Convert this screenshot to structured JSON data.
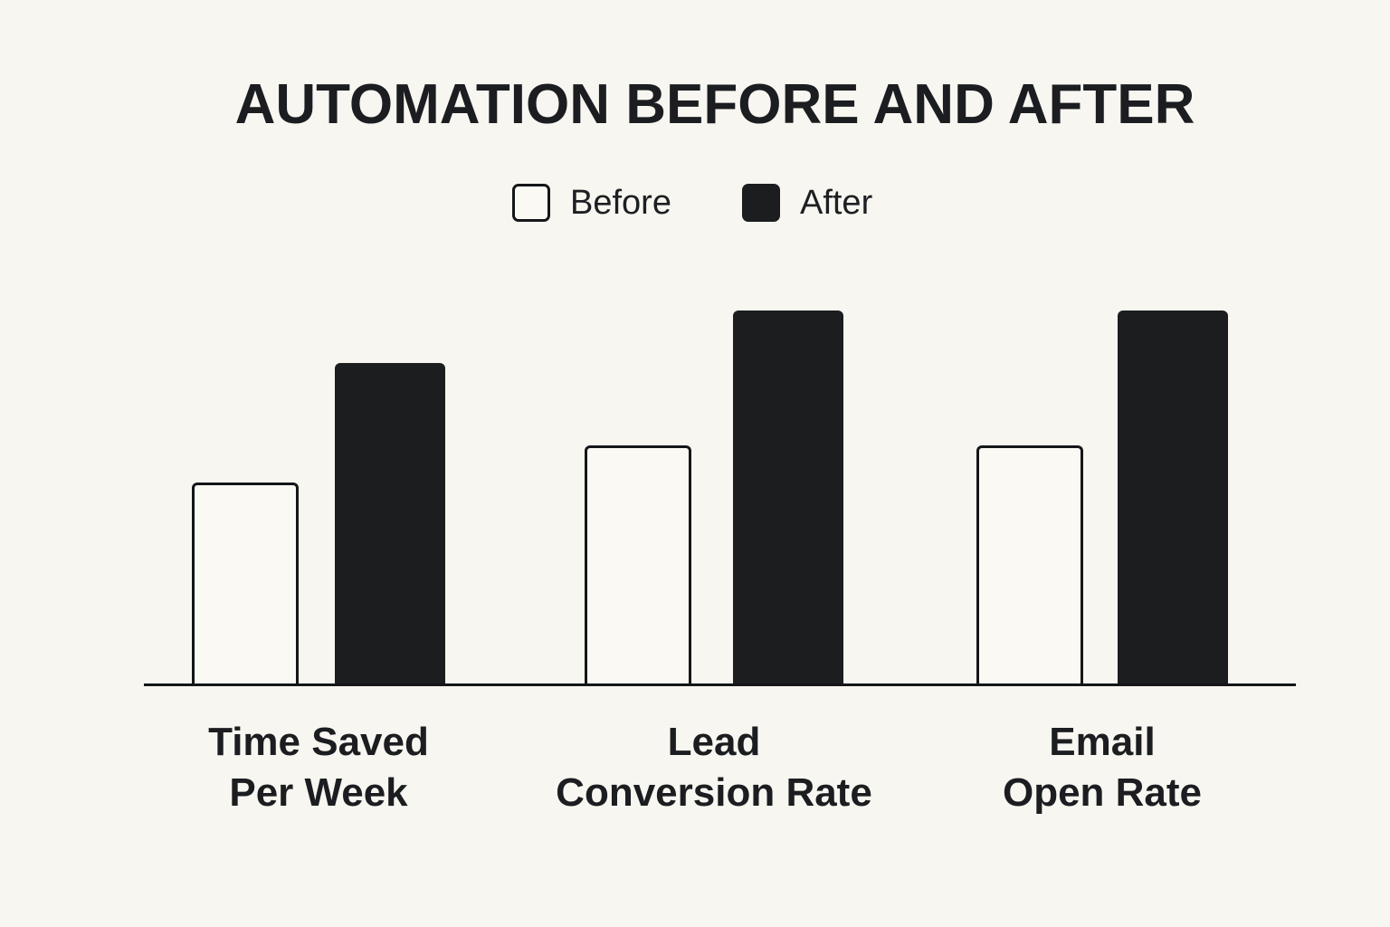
{
  "chart_data": {
    "type": "bar",
    "title": "AUTOMATION BEFORE AND AFTER",
    "categories": [
      "Time Saved\nPer Week",
      "Lead\nConversion Rate",
      "Email\nOpen Rate"
    ],
    "series": [
      {
        "name": "Before",
        "values": [
          54,
          64,
          64
        ],
        "style": "outlined",
        "fill": "#fbf9f4",
        "outline": "#141619"
      },
      {
        "name": "After",
        "values": [
          86,
          100,
          100
        ],
        "style": "filled",
        "fill": "#1b1d1f"
      }
    ],
    "ylim": [
      0,
      100
    ],
    "note": "no numeric axis labels shown; values estimated as percent of tallest bar",
    "legend_position": "top-center",
    "grid": false,
    "xlabel": "",
    "ylabel": ""
  },
  "colors": {
    "background": "#f8f6f0",
    "bar_dark": "#1b1d1f",
    "bar_light_fill": "#fbf9f4",
    "stroke": "#141619",
    "text": "#1b1d20"
  }
}
